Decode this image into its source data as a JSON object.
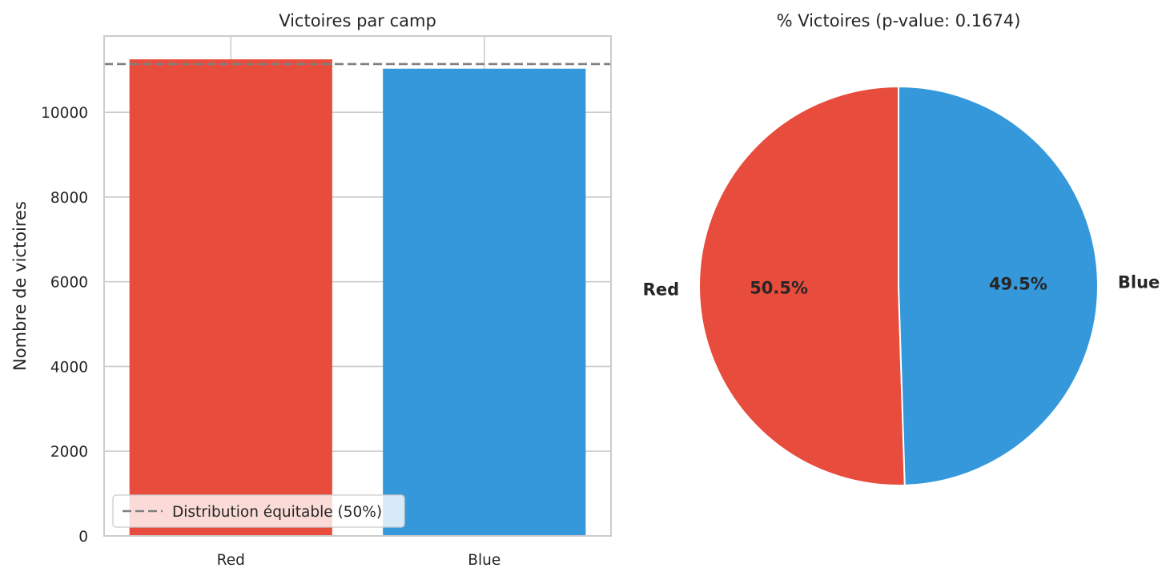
{
  "colors": {
    "red": "#e74c3c",
    "blue": "#3498db",
    "reference_line": "#808080",
    "grid": "#cccccc",
    "axis_edge": "#cccccc"
  },
  "chart_data": [
    {
      "type": "bar",
      "title": "Victoires par camp",
      "xlabel": "",
      "ylabel": "Nombre de victoires",
      "categories": [
        "Red",
        "Blue"
      ],
      "values": [
        11250,
        11030
      ],
      "colors": [
        "#e74c3c",
        "#3498db"
      ],
      "ylim": [
        0,
        11800
      ],
      "yticks": [
        0,
        2000,
        4000,
        6000,
        8000,
        10000
      ],
      "grid": true,
      "reference_line": {
        "value": 11140,
        "style": "dashed",
        "label": "Distribution équitable (50%)"
      },
      "legend": {
        "position": "lower-left",
        "entries": [
          "Distribution équitable (50%)"
        ]
      }
    },
    {
      "type": "pie",
      "title": "% Victoires (p-value: 0.1674)",
      "labels": [
        "Red",
        "Blue"
      ],
      "values": [
        50.5,
        49.5
      ],
      "percent_labels": [
        "50.5%",
        "49.5%"
      ],
      "colors": [
        "#e74c3c",
        "#3498db"
      ],
      "start_angle": 90
    }
  ]
}
